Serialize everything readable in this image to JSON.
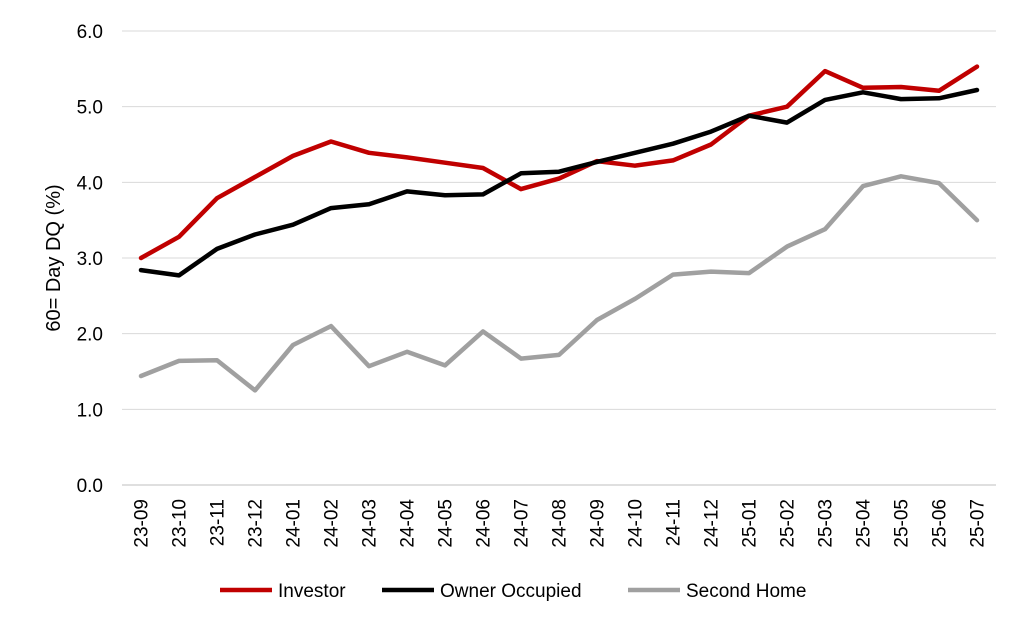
{
  "chart_data": {
    "type": "line",
    "ylabel": "60= Day DQ (%)",
    "xlabel": "",
    "ylim": [
      0,
      6
    ],
    "yticks": [
      "0.0",
      "1.0",
      "2.0",
      "3.0",
      "4.0",
      "5.0",
      "6.0"
    ],
    "grid": "horizontal",
    "legend_position": "bottom",
    "categories": [
      "23-09",
      "23-10",
      "23-11",
      "23-12",
      "24-01",
      "24-02",
      "24-03",
      "24-04",
      "24-05",
      "24-06",
      "24-07",
      "24-08",
      "24-09",
      "24-10",
      "24-11",
      "24-12",
      "25-01",
      "25-02",
      "25-03",
      "25-04",
      "25-05",
      "25-06",
      "25-07"
    ],
    "series": [
      {
        "name": "Investor",
        "color": "#C00000",
        "values": [
          3.0,
          3.28,
          3.79,
          4.07,
          4.35,
          4.54,
          4.39,
          4.33,
          4.26,
          4.19,
          3.91,
          4.05,
          4.28,
          4.22,
          4.29,
          4.5,
          4.88,
          5.0,
          5.47,
          5.25,
          5.26,
          5.21,
          5.53
        ]
      },
      {
        "name": "Owner Occupied",
        "color": "#000000",
        "values": [
          2.84,
          2.77,
          3.12,
          3.31,
          3.44,
          3.66,
          3.71,
          3.88,
          3.83,
          3.84,
          4.12,
          4.14,
          4.27,
          4.39,
          4.51,
          4.67,
          4.88,
          4.79,
          5.09,
          5.19,
          5.1,
          5.11,
          5.22
        ]
      },
      {
        "name": "Second Home",
        "color": "#A0A0A0",
        "values": [
          1.44,
          1.64,
          1.65,
          1.25,
          1.85,
          2.1,
          1.57,
          1.76,
          1.58,
          2.03,
          1.67,
          1.72,
          2.18,
          2.46,
          2.78,
          2.82,
          2.8,
          3.15,
          3.38,
          3.95,
          4.08,
          3.99,
          3.5
        ]
      }
    ]
  }
}
